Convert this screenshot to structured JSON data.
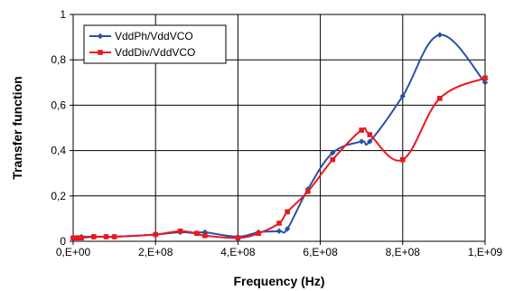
{
  "chart_data": {
    "type": "line",
    "xlabel": "Frequency (Hz)",
    "ylabel": "Transfer function",
    "xlim": [
      0,
      1000000000
    ],
    "ylim": [
      0,
      1
    ],
    "x_ticks": [
      {
        "value": 0,
        "label": "0,E+00"
      },
      {
        "value": 200000000,
        "label": "2,E+08"
      },
      {
        "value": 400000000,
        "label": "4,E+08"
      },
      {
        "value": 600000000,
        "label": "6,E+08"
      },
      {
        "value": 800000000,
        "label": "8,E+08"
      },
      {
        "value": 1000000000,
        "label": "1,E+09"
      }
    ],
    "y_ticks": [
      {
        "value": 0,
        "label": "0"
      },
      {
        "value": 0.2,
        "label": "0,2"
      },
      {
        "value": 0.4,
        "label": "0,4"
      },
      {
        "value": 0.6,
        "label": "0,6"
      },
      {
        "value": 0.8,
        "label": "0,8"
      },
      {
        "value": 1,
        "label": "1"
      }
    ],
    "grid": true,
    "legend_position": "top-left",
    "series": [
      {
        "name": "VddPh/VddVCO",
        "color": "#2b4fa8",
        "marker": "diamond",
        "x": [
          0,
          10000000,
          20000000,
          50000000,
          80000000,
          100000000,
          200000000,
          260000000,
          300000000,
          320000000,
          400000000,
          450000000,
          500000000,
          520000000,
          570000000,
          630000000,
          700000000,
          720000000,
          800000000,
          890000000,
          1000000000
        ],
        "y": [
          0.015,
          0.015,
          0.02,
          0.02,
          0.02,
          0.02,
          0.03,
          0.04,
          0.035,
          0.04,
          0.02,
          0.04,
          0.045,
          0.055,
          0.23,
          0.39,
          0.44,
          0.44,
          0.64,
          0.91,
          0.7
        ]
      },
      {
        "name": "VddDiv/VddVCO",
        "color": "#e8191f",
        "marker": "square",
        "x": [
          0,
          10000000,
          20000000,
          50000000,
          80000000,
          100000000,
          200000000,
          260000000,
          300000000,
          320000000,
          400000000,
          450000000,
          500000000,
          520000000,
          570000000,
          630000000,
          700000000,
          720000000,
          800000000,
          890000000,
          1000000000
        ],
        "y": [
          0.015,
          0.015,
          0.015,
          0.02,
          0.02,
          0.02,
          0.03,
          0.045,
          0.035,
          0.025,
          0.015,
          0.035,
          0.08,
          0.13,
          0.22,
          0.36,
          0.49,
          0.47,
          0.36,
          0.63,
          0.72
        ]
      }
    ]
  }
}
